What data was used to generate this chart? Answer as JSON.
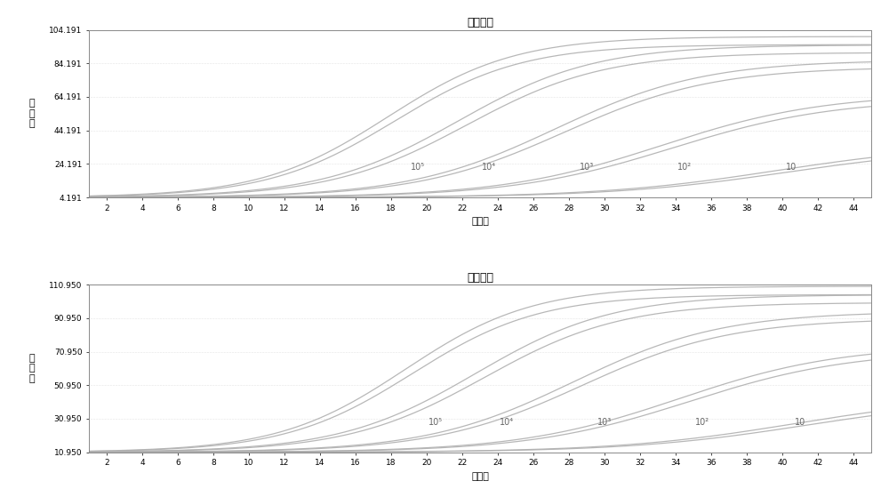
{
  "title": "扩增曲线",
  "xlabel": "循环数",
  "ylabel": "荧\n光\n值",
  "chart1": {
    "ylim": [
      4.191,
      104.191
    ],
    "yticks": [
      4.191,
      24.191,
      44.191,
      64.191,
      84.191,
      104.191
    ],
    "ytick_labels": [
      "4.191",
      "24.191",
      "44.191",
      "64.191",
      "84.191",
      "104.191"
    ]
  },
  "chart2": {
    "ylim": [
      10.95,
      110.95
    ],
    "yticks": [
      10.95,
      30.95,
      50.95,
      70.95,
      90.95,
      110.95
    ],
    "ytick_labels": [
      "10.950",
      "30.950",
      "50.950",
      "70.950",
      "90.950",
      "110.950"
    ]
  },
  "xlim": [
    1,
    45
  ],
  "xticks": [
    2,
    4,
    6,
    8,
    10,
    12,
    14,
    16,
    18,
    20,
    22,
    24,
    26,
    28,
    30,
    32,
    34,
    36,
    38,
    40,
    42,
    44
  ],
  "labels": [
    "10⁵",
    "10⁴",
    "10³",
    "10²",
    "10"
  ],
  "label_x_positions1": [
    19.5,
    23.5,
    29.0,
    34.5,
    40.5
  ],
  "label_x_positions2": [
    20.5,
    24.5,
    30.0,
    35.5,
    41.0
  ],
  "curve_color": "#b0b0b0",
  "background_color": "#ffffff",
  "n_curves": 5,
  "midpoints1": [
    18.0,
    22.0,
    27.5,
    33.5,
    40.0
  ],
  "midpoints2": [
    19.0,
    23.0,
    28.5,
    34.5,
    41.0
  ],
  "steepness": [
    0.28,
    0.26,
    0.24,
    0.22,
    0.2
  ],
  "amplitudes1": [
    96,
    91,
    82,
    62,
    32
  ],
  "amplitudes2": [
    99,
    94,
    84,
    64,
    34
  ],
  "offsets1": [
    0.4,
    0.5,
    0.5,
    0.6,
    0.7
  ],
  "offsets2": [
    0.4,
    0.5,
    0.5,
    0.6,
    0.7
  ],
  "baseline1": 4.191,
  "baseline2": 10.95
}
